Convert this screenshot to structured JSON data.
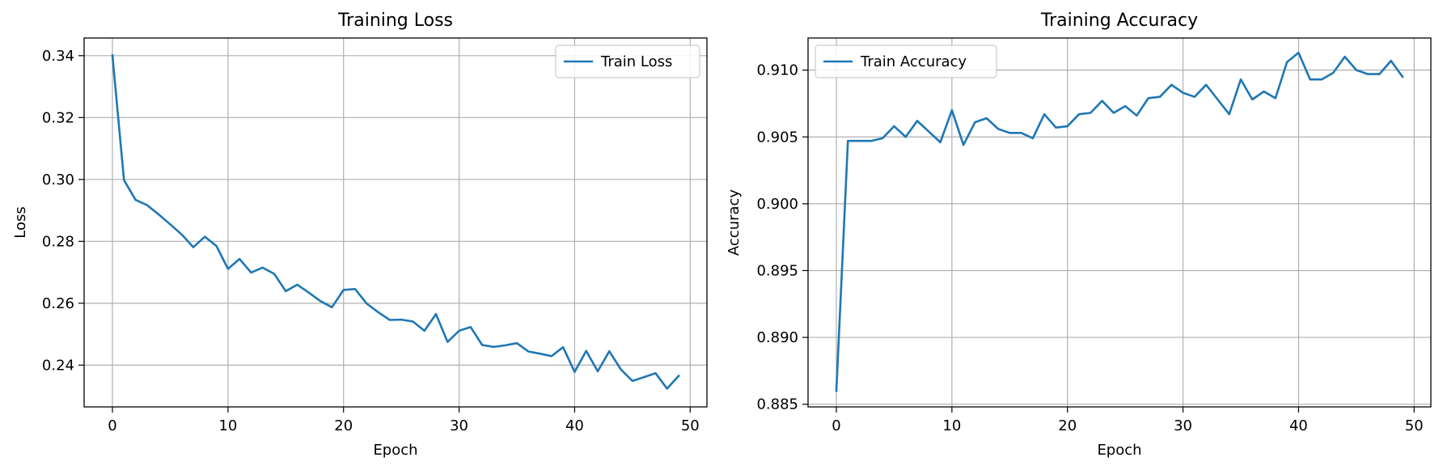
{
  "chart_data": [
    {
      "type": "line",
      "title": "Training Loss",
      "xlabel": "Epoch",
      "ylabel": "Loss",
      "xlim": [
        -2.45,
        51.45
      ],
      "ylim": [
        0.2265,
        0.3457
      ],
      "xticks": [
        0,
        10,
        20,
        30,
        40,
        50
      ],
      "yticks": [
        0.24,
        0.26,
        0.28,
        0.3,
        0.32,
        0.34
      ],
      "ytick_labels": [
        "0.24",
        "0.26",
        "0.28",
        "0.30",
        "0.32",
        "0.34"
      ],
      "grid": true,
      "legend_loc": "upper right",
      "color": "#1f77b4",
      "series": [
        {
          "name": "Train Loss",
          "x": [
            0,
            1,
            2,
            3,
            4,
            5,
            6,
            7,
            8,
            9,
            10,
            11,
            12,
            13,
            14,
            15,
            16,
            17,
            18,
            19,
            20,
            21,
            22,
            23,
            24,
            25,
            26,
            27,
            28,
            29,
            30,
            31,
            32,
            33,
            34,
            35,
            36,
            37,
            38,
            39,
            40,
            41,
            42,
            43,
            44,
            45,
            46,
            47,
            48,
            49
          ],
          "values": [
            0.3401,
            0.2998,
            0.2934,
            0.2917,
            0.2887,
            0.2855,
            0.2822,
            0.2781,
            0.2815,
            0.2785,
            0.2711,
            0.2743,
            0.2699,
            0.2715,
            0.2695,
            0.2639,
            0.266,
            0.2634,
            0.2607,
            0.2587,
            0.2643,
            0.2646,
            0.2599,
            0.2571,
            0.2546,
            0.2547,
            0.2541,
            0.2511,
            0.2565,
            0.2475,
            0.2511,
            0.2523,
            0.2465,
            0.2459,
            0.2464,
            0.2471,
            0.2444,
            0.2437,
            0.2429,
            0.2458,
            0.2378,
            0.2446,
            0.238,
            0.2445,
            0.2386,
            0.2349,
            0.2361,
            0.2374,
            0.2324,
            0.2365
          ]
        }
      ]
    },
    {
      "type": "line",
      "title": "Training Accuracy",
      "xlabel": "Epoch",
      "ylabel": "Accuracy",
      "xlim": [
        -2.45,
        51.45
      ],
      "ylim": [
        0.8848,
        0.9124
      ],
      "xticks": [
        0,
        10,
        20,
        30,
        40,
        50
      ],
      "yticks": [
        0.885,
        0.89,
        0.895,
        0.9,
        0.905,
        0.91
      ],
      "ytick_labels": [
        "0.885",
        "0.890",
        "0.895",
        "0.900",
        "0.905",
        "0.910"
      ],
      "grid": true,
      "legend_loc": "upper left",
      "color": "#1f77b4",
      "series": [
        {
          "name": "Train Accuracy",
          "x": [
            0,
            1,
            2,
            3,
            4,
            5,
            6,
            7,
            8,
            9,
            10,
            11,
            12,
            13,
            14,
            15,
            16,
            17,
            18,
            19,
            20,
            21,
            22,
            23,
            24,
            25,
            26,
            27,
            28,
            29,
            30,
            31,
            32,
            33,
            34,
            35,
            36,
            37,
            38,
            39,
            40,
            41,
            42,
            43,
            44,
            45,
            46,
            47,
            48,
            49
          ],
          "values": [
            0.886,
            0.9047,
            0.9047,
            0.9047,
            0.9049,
            0.9058,
            0.905,
            0.9062,
            0.9054,
            0.9046,
            0.907,
            0.9044,
            0.9061,
            0.9064,
            0.9056,
            0.9053,
            0.9053,
            0.9049,
            0.9067,
            0.9057,
            0.9058,
            0.9067,
            0.9068,
            0.9077,
            0.9068,
            0.9073,
            0.9066,
            0.9079,
            0.908,
            0.9089,
            0.9083,
            0.908,
            0.9089,
            0.9078,
            0.9067,
            0.9093,
            0.9078,
            0.9084,
            0.9079,
            0.9106,
            0.9113,
            0.9093,
            0.9093,
            0.9098,
            0.911,
            0.91,
            0.9097,
            0.9097,
            0.9107,
            0.9095
          ]
        }
      ]
    }
  ]
}
